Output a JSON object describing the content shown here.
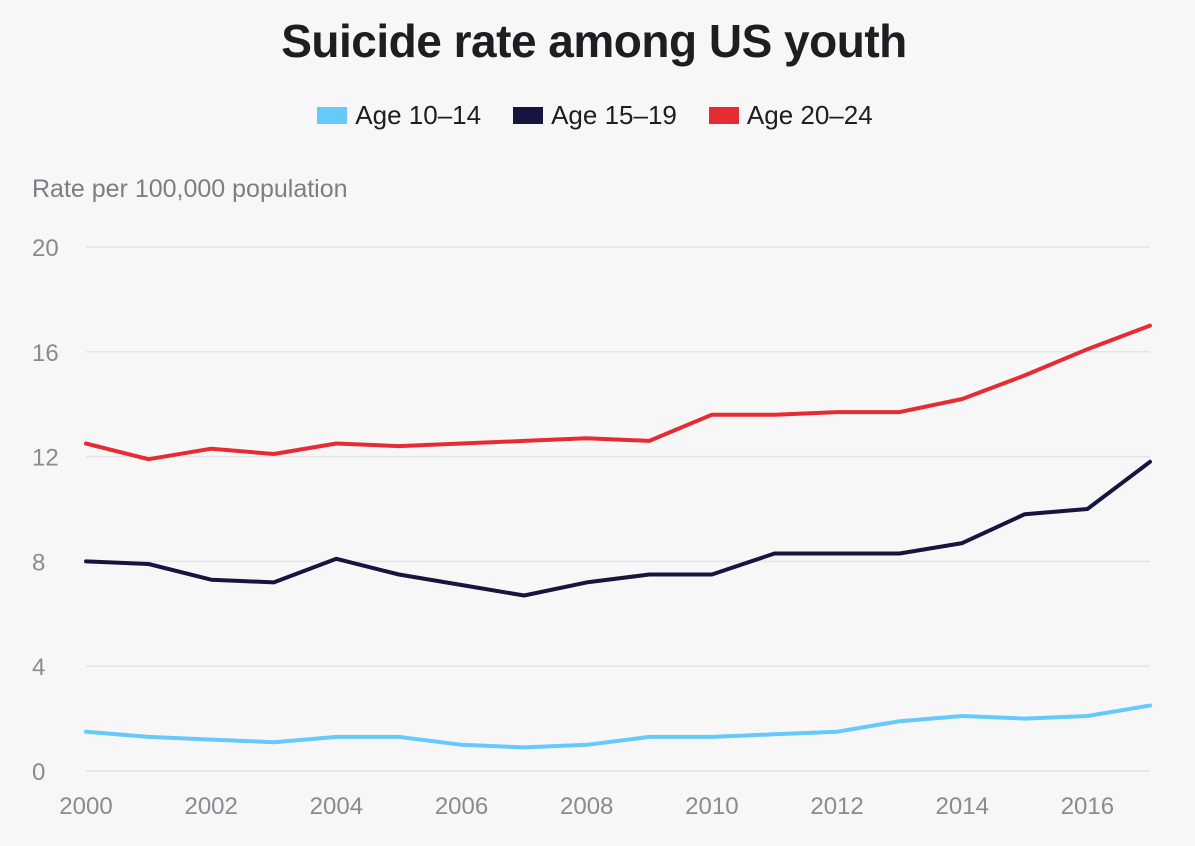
{
  "chart_data": {
    "type": "line",
    "title": "Suicide rate among US youth",
    "ylabel": "Rate per 100,000 population",
    "xlabel": "",
    "x": [
      2000,
      2001,
      2002,
      2003,
      2004,
      2005,
      2006,
      2007,
      2008,
      2009,
      2010,
      2011,
      2012,
      2013,
      2014,
      2015,
      2016,
      2017
    ],
    "xlim": [
      2000,
      2017
    ],
    "ylim": [
      0,
      20
    ],
    "xticks": [
      "2000",
      "2002",
      "2004",
      "2006",
      "2008",
      "2010",
      "2012",
      "2014",
      "2016"
    ],
    "yticks": [
      "0",
      "4",
      "8",
      "12",
      "16",
      "20"
    ],
    "grid": "horizontal",
    "legend_position": "top-center",
    "series": [
      {
        "name": "Age 10–14",
        "color": "#66c9fb",
        "values": [
          1.5,
          1.3,
          1.2,
          1.1,
          1.3,
          1.3,
          1.0,
          0.9,
          1.0,
          1.3,
          1.3,
          1.4,
          1.5,
          1.9,
          2.1,
          2.0,
          2.1,
          2.5
        ]
      },
      {
        "name": "Age 15–19",
        "color": "#15163f",
        "values": [
          8.0,
          7.9,
          7.3,
          7.2,
          8.1,
          7.5,
          7.1,
          6.7,
          7.2,
          7.5,
          7.5,
          8.3,
          8.3,
          8.3,
          8.7,
          9.8,
          10.0,
          11.8
        ]
      },
      {
        "name": "Age 20–24",
        "color": "#e52b33",
        "values": [
          12.5,
          11.9,
          12.3,
          12.1,
          12.5,
          12.4,
          12.5,
          12.6,
          12.7,
          12.6,
          13.6,
          13.6,
          13.7,
          13.7,
          14.2,
          15.1,
          16.1,
          17.0
        ]
      }
    ]
  }
}
